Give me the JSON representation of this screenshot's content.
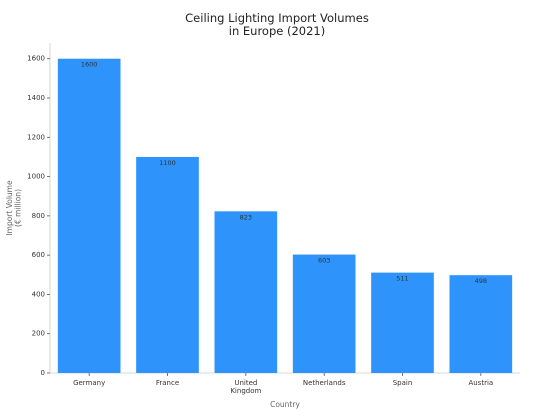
{
  "chart_data": {
    "type": "bar",
    "title": "Ceiling Lighting Import Volumes\nin Europe (2021)",
    "x_label": "Country",
    "y_label": "Import Volume\n(€ million)",
    "categories": [
      "Germany",
      "France",
      "United\nKingdom",
      "Netherlands",
      "Spain",
      "Austria"
    ],
    "values": [
      1600,
      1100,
      823,
      603,
      511,
      498
    ],
    "color": "#2e93fa",
    "ylim": [
      0,
      1680
    ],
    "yticks": [
      0,
      200,
      400,
      600,
      800,
      1000,
      1200,
      1400,
      1600
    ],
    "grid": false
  }
}
